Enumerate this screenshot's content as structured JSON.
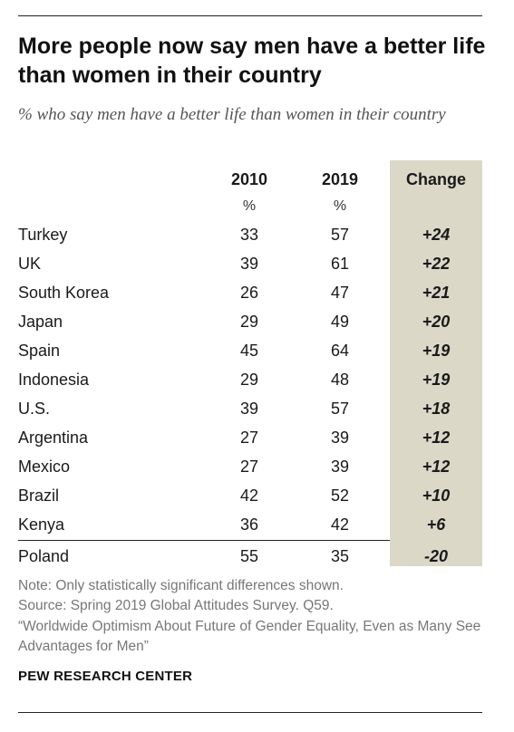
{
  "title": "More people now say men have a better life than women in their country",
  "subtitle": "% who say men have a better life than women in their country",
  "header": {
    "col2010": "2010",
    "col2019": "2019",
    "change": "Change",
    "unit": "%"
  },
  "chart_data": {
    "type": "table",
    "title": "More people now say men have a better life than women in their country",
    "columns": [
      "",
      "2010",
      "2019",
      "Change"
    ],
    "rows": [
      {
        "country": "Turkey",
        "y2010": "33",
        "y2019": "57",
        "change": "+24"
      },
      {
        "country": "UK",
        "y2010": "39",
        "y2019": "61",
        "change": "+22"
      },
      {
        "country": "South Korea",
        "y2010": "26",
        "y2019": "47",
        "change": "+21"
      },
      {
        "country": "Japan",
        "y2010": "29",
        "y2019": "49",
        "change": "+20"
      },
      {
        "country": "Spain",
        "y2010": "45",
        "y2019": "64",
        "change": "+19"
      },
      {
        "country": "Indonesia",
        "y2010": "29",
        "y2019": "48",
        "change": "+19"
      },
      {
        "country": "U.S.",
        "y2010": "39",
        "y2019": "57",
        "change": "+18"
      },
      {
        "country": "Argentina",
        "y2010": "27",
        "y2019": "39",
        "change": "+12"
      },
      {
        "country": "Mexico",
        "y2010": "27",
        "y2019": "39",
        "change": "+12"
      },
      {
        "country": "Brazil",
        "y2010": "42",
        "y2019": "52",
        "change": "+10"
      },
      {
        "country": "Kenya",
        "y2010": "36",
        "y2019": "42",
        "change": "+6"
      },
      {
        "country": "Poland",
        "y2010": "55",
        "y2019": "35",
        "change": "-20"
      }
    ]
  },
  "notes": {
    "note": "Note: Only statistically significant differences shown.",
    "source": "Source: Spring 2019 Global Attitudes Survey. Q59.",
    "report": "“Worldwide Optimism About Future of Gender Equality, Even as Many See Advantages for Men”"
  },
  "brand": "PEW RESEARCH CENTER",
  "colors": {
    "change_band": "#dcd8c8",
    "text": "#1a1a1a",
    "note": "#777777"
  }
}
